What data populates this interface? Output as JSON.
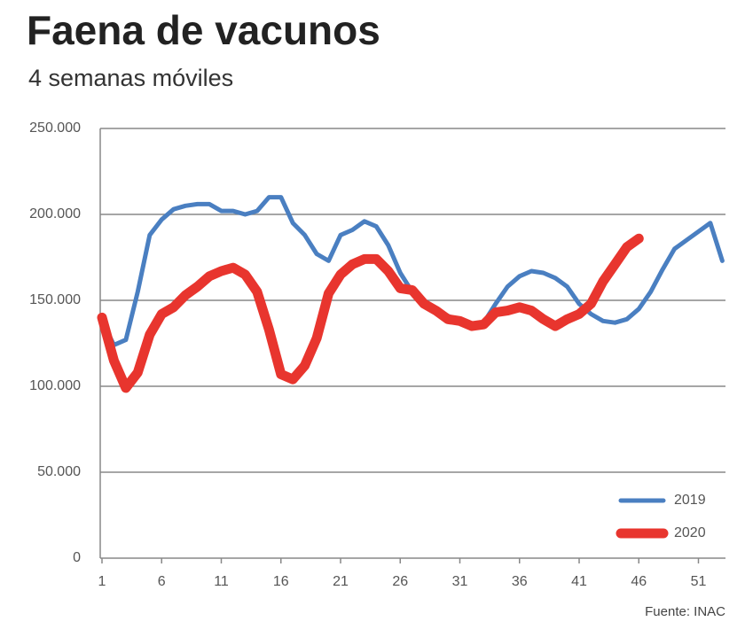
{
  "chart_data": {
    "type": "line",
    "title": "Faena de vacunos",
    "subtitle": "4 semanas móviles",
    "source": "Fuente: INAC",
    "x": [
      1,
      2,
      3,
      4,
      5,
      6,
      7,
      8,
      9,
      10,
      11,
      12,
      13,
      14,
      15,
      16,
      17,
      18,
      19,
      20,
      21,
      22,
      23,
      24,
      25,
      26,
      27,
      28,
      29,
      30,
      31,
      32,
      33,
      34,
      35,
      36,
      37,
      38,
      39,
      40,
      41,
      42,
      43,
      44,
      45,
      46,
      47,
      48,
      49,
      50,
      51,
      52,
      53
    ],
    "series": [
      {
        "name": "2019",
        "color": "#4a7fc1",
        "values": [
          138000,
          124000,
          127000,
          155000,
          188000,
          197000,
          203000,
          205000,
          206000,
          206000,
          202000,
          202000,
          200000,
          202000,
          210000,
          210000,
          195000,
          188000,
          177000,
          173000,
          188000,
          191000,
          196000,
          193000,
          182000,
          166000,
          155000,
          150000,
          145000,
          141000,
          138000,
          135000,
          137000,
          148000,
          158000,
          164000,
          167000,
          166000,
          163000,
          158000,
          148000,
          142000,
          138000,
          137000,
          139000,
          145000,
          155000,
          168000,
          180000,
          185000,
          190000,
          195000,
          173000
        ]
      },
      {
        "name": "2020",
        "color": "#e8352e",
        "values": [
          140000,
          115000,
          99000,
          108000,
          130000,
          142000,
          146000,
          153000,
          158000,
          164000,
          167000,
          169000,
          165000,
          155000,
          133000,
          107000,
          104000,
          112000,
          128000,
          154000,
          165000,
          171000,
          174000,
          174000,
          167000,
          157000,
          156000,
          148000,
          144000,
          139000,
          138000,
          135000,
          136000,
          143000,
          144000,
          146000,
          144000,
          139000,
          135000,
          139000,
          142000,
          148000,
          161000,
          171000,
          181000,
          186000,
          null,
          null,
          null,
          null,
          null,
          null,
          null
        ]
      }
    ],
    "xlim": [
      1,
      53.5
    ],
    "xticks": [
      1,
      6,
      11,
      16,
      21,
      26,
      31,
      36,
      41,
      46,
      51
    ],
    "ylim": [
      0,
      250000
    ],
    "yticks": [
      0,
      {
        "value": 50000,
        "label": "50.000"
      },
      {
        "value": 100000,
        "label": "100.000"
      },
      {
        "value": 150000,
        "label": "150.000"
      },
      {
        "value": 200000,
        "label": "200.000"
      },
      {
        "value": 250000,
        "label": "250.000"
      }
    ],
    "grid": true,
    "legend": "lower right"
  }
}
